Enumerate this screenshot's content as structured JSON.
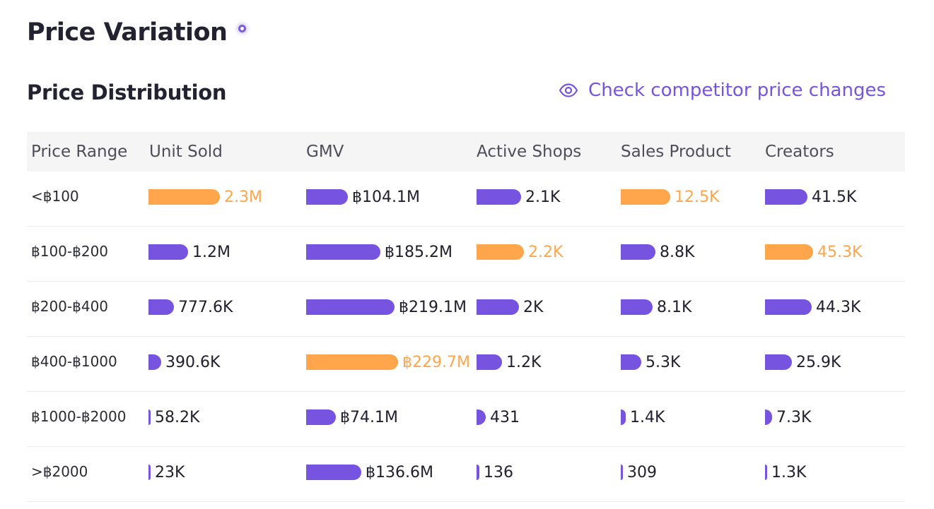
{
  "page_title": "Price Variation",
  "section_title": "Price Distribution",
  "competitor_link": {
    "label": "Check competitor price changes",
    "icon": "eye-icon"
  },
  "columns": [
    "Price Range",
    "Unit Sold",
    "GMV",
    "Active Shops",
    "Sales Product",
    "Creators"
  ],
  "colors": {
    "bar": "#7654e0",
    "highlight": "#ffa64d"
  },
  "rows": [
    {
      "range": "<฿100",
      "cells": [
        {
          "value": "2.3M",
          "share": 0.9,
          "highlight": true
        },
        {
          "value": "฿104.1M",
          "share": 0.45,
          "highlight": false
        },
        {
          "value": "2.1K",
          "share": 0.7,
          "highlight": false
        },
        {
          "value": "12.5K",
          "share": 0.76,
          "highlight": true
        },
        {
          "value": "41.5K",
          "share": 0.65,
          "highlight": false
        }
      ]
    },
    {
      "range": "฿100-฿200",
      "cells": [
        {
          "value": "1.2M",
          "share": 0.5,
          "highlight": false
        },
        {
          "value": "฿185.2M",
          "share": 0.81,
          "highlight": false
        },
        {
          "value": "2.2K",
          "share": 0.74,
          "highlight": true
        },
        {
          "value": "8.8K",
          "share": 0.53,
          "highlight": false
        },
        {
          "value": "45.3K",
          "share": 0.73,
          "highlight": true
        }
      ]
    },
    {
      "range": "฿200-฿400",
      "cells": [
        {
          "value": "777.6K",
          "share": 0.32,
          "highlight": false
        },
        {
          "value": "฿219.1M",
          "share": 0.96,
          "highlight": false
        },
        {
          "value": "2K",
          "share": 0.67,
          "highlight": false
        },
        {
          "value": "8.1K",
          "share": 0.49,
          "highlight": false
        },
        {
          "value": "44.3K",
          "share": 0.71,
          "highlight": false
        }
      ]
    },
    {
      "range": "฿400-฿1000",
      "cells": [
        {
          "value": "390.6K",
          "share": 0.16,
          "highlight": false
        },
        {
          "value": "฿229.7M",
          "share": 1.0,
          "highlight": true
        },
        {
          "value": "1.2K",
          "share": 0.4,
          "highlight": false
        },
        {
          "value": "5.3K",
          "share": 0.32,
          "highlight": false
        },
        {
          "value": "25.9K",
          "share": 0.41,
          "highlight": false
        }
      ]
    },
    {
      "range": "฿1000-฿2000",
      "cells": [
        {
          "value": "58.2K",
          "share": 0.025,
          "highlight": false
        },
        {
          "value": "฿74.1M",
          "share": 0.32,
          "highlight": false
        },
        {
          "value": "431",
          "share": 0.14,
          "highlight": false
        },
        {
          "value": "1.4K",
          "share": 0.08,
          "highlight": false
        },
        {
          "value": "7.3K",
          "share": 0.11,
          "highlight": false
        }
      ]
    },
    {
      "range": ">฿2000",
      "cells": [
        {
          "value": "23K",
          "share": 0.01,
          "highlight": false
        },
        {
          "value": "฿136.6M",
          "share": 0.6,
          "highlight": false
        },
        {
          "value": "136",
          "share": 0.04,
          "highlight": false
        },
        {
          "value": "309",
          "share": 0.015,
          "highlight": false
        },
        {
          "value": "1.3K",
          "share": 0.015,
          "highlight": false
        }
      ]
    }
  ]
}
